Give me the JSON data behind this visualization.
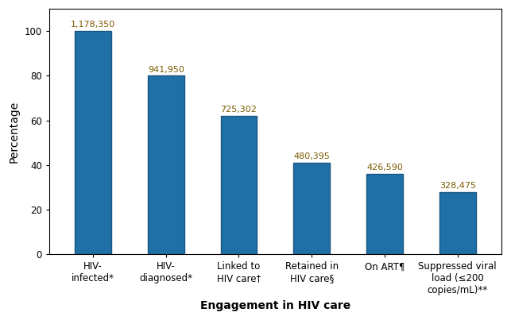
{
  "categories": [
    "HIV-\ninfected*",
    "HIV-\ndiagnosed*",
    "Linked to\nHIV care†",
    "Retained in\nHIV care§",
    "On ART¶",
    "Suppressed viral\nload (≤200\ncopies/mL)**"
  ],
  "values": [
    100,
    80,
    62,
    41,
    36,
    28
  ],
  "labels": [
    "1,178,350",
    "941,950",
    "725,302",
    "480,395",
    "426,590",
    "328,475"
  ],
  "bar_color": "#2070a8",
  "bar_edge_color": "#1a5580",
  "xlabel": "Engagement in HIV care",
  "ylabel": "Percentage",
  "ylim": [
    0,
    110
  ],
  "yticks": [
    0,
    20,
    40,
    60,
    80,
    100
  ],
  "label_fontsize": 8.0,
  "axis_label_fontsize": 10,
  "tick_fontsize": 8.5,
  "background_color": "#ffffff",
  "bar_width": 0.5,
  "label_color": "#7b5a00"
}
